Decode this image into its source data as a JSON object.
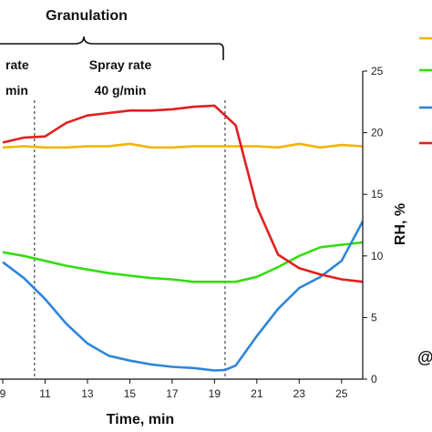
{
  "chart_data": {
    "type": "line",
    "header": {
      "phase_label": "Granulation",
      "left_segment": [
        "rate",
        "min"
      ],
      "right_segment": [
        "Spray rate",
        "40 g/min"
      ],
      "bottom_right_partial": "@"
    },
    "xlabel": "Time, min",
    "y2label": "RH, %",
    "x_ticks": [
      9,
      11,
      13,
      15,
      17,
      19,
      21,
      23,
      25
    ],
    "xlim": [
      9,
      26
    ],
    "y2_ticks": [
      0,
      5,
      10,
      15,
      20,
      25
    ],
    "y2lim": [
      0,
      25
    ],
    "vlines": [
      10.5,
      19.5
    ],
    "grid": false,
    "legend": "right (partially cropped)",
    "series": [
      {
        "color": "#f2b400",
        "x": [
          9,
          10,
          11,
          12,
          13,
          14,
          15,
          16,
          17,
          18,
          19,
          20,
          21,
          22,
          23,
          24,
          25,
          26
        ],
        "y": [
          18.8,
          18.9,
          18.8,
          18.8,
          18.9,
          18.9,
          19.1,
          18.8,
          18.8,
          18.9,
          18.9,
          18.9,
          18.9,
          18.8,
          19.1,
          18.8,
          19.0,
          18.9
        ]
      },
      {
        "color": "#33dd11",
        "x": [
          9,
          10,
          11,
          12,
          13,
          14,
          15,
          16,
          17,
          18,
          19,
          20,
          21,
          22,
          23,
          24,
          25,
          26
        ],
        "y": [
          10.3,
          10.0,
          9.6,
          9.2,
          8.9,
          8.6,
          8.4,
          8.2,
          8.1,
          7.9,
          7.9,
          7.9,
          8.3,
          9.1,
          10.0,
          10.7,
          10.9,
          11.1
        ]
      },
      {
        "color": "#2f86d8",
        "x": [
          9,
          10,
          11,
          12,
          13,
          14,
          15,
          16,
          17,
          18,
          19,
          19.5,
          20,
          21,
          22,
          23,
          24,
          25,
          26
        ],
        "y": [
          9.5,
          8.2,
          6.5,
          4.5,
          2.9,
          1.9,
          1.5,
          1.2,
          1.0,
          0.9,
          0.7,
          0.75,
          1.1,
          3.5,
          5.7,
          7.4,
          8.3,
          9.6,
          12.8
        ]
      },
      {
        "color": "#e01f1f",
        "x": [
          9,
          10,
          11,
          12,
          13,
          14,
          15,
          16,
          17,
          18,
          19,
          20,
          21,
          22,
          23,
          24,
          25,
          26
        ],
        "y": [
          19.2,
          19.6,
          19.7,
          20.8,
          21.4,
          21.6,
          21.8,
          21.8,
          21.9,
          22.1,
          22.2,
          20.6,
          14.0,
          10.1,
          9.0,
          8.5,
          8.1,
          7.9
        ]
      }
    ]
  }
}
